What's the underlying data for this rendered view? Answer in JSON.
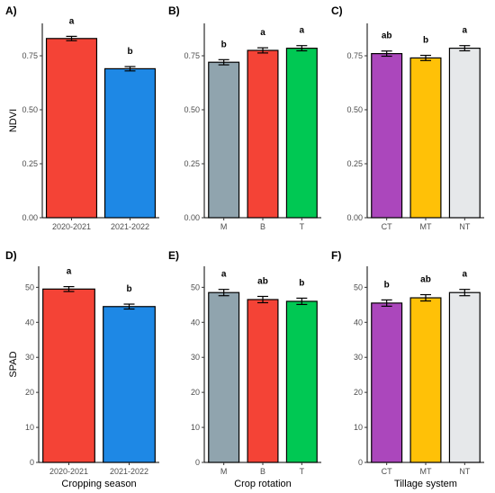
{
  "chart_data": [
    {
      "panel": "A)",
      "type": "bar",
      "ylabel": "NDVI",
      "xlabel": "",
      "ylim": [
        0,
        0.9
      ],
      "yticks": [
        "0.00",
        "0.25",
        "0.50",
        "0.75"
      ],
      "categories": [
        "2020-2021",
        "2021-2022"
      ],
      "values": [
        0.83,
        0.69
      ],
      "errors": [
        0.01,
        0.01
      ],
      "letters": [
        "a",
        "b"
      ],
      "colors": [
        "#f44336",
        "#1e88e5"
      ]
    },
    {
      "panel": "B)",
      "type": "bar",
      "ylabel": "",
      "xlabel": "",
      "ylim": [
        0,
        0.9
      ],
      "yticks": [
        "0.00",
        "0.25",
        "0.50",
        "0.75"
      ],
      "categories": [
        "M",
        "B",
        "T"
      ],
      "values": [
        0.72,
        0.775,
        0.785
      ],
      "errors": [
        0.012,
        0.012,
        0.012
      ],
      "letters": [
        "b",
        "a",
        "a"
      ],
      "colors": [
        "#90a4ae",
        "#f44336",
        "#00c853"
      ]
    },
    {
      "panel": "C)",
      "type": "bar",
      "ylabel": "",
      "xlabel": "",
      "ylim": [
        0,
        0.9
      ],
      "yticks": [
        "0.00",
        "0.25",
        "0.50",
        "0.75"
      ],
      "categories": [
        "CT",
        "MT",
        "NT"
      ],
      "values": [
        0.76,
        0.74,
        0.785
      ],
      "errors": [
        0.012,
        0.012,
        0.012
      ],
      "letters": [
        "ab",
        "b",
        "a"
      ],
      "colors": [
        "#ab47bc",
        "#ffc107",
        "#e6e8ea"
      ]
    },
    {
      "panel": "D)",
      "type": "bar",
      "ylabel": "SPAD",
      "xlabel": "Cropping season",
      "ylim": [
        0,
        56
      ],
      "yticks": [
        "0",
        "10",
        "20",
        "30",
        "40",
        "50"
      ],
      "categories": [
        "2020-2021",
        "2021-2022"
      ],
      "values": [
        49.5,
        44.5
      ],
      "errors": [
        0.7,
        0.7
      ],
      "letters": [
        "a",
        "b"
      ],
      "colors": [
        "#f44336",
        "#1e88e5"
      ]
    },
    {
      "panel": "E)",
      "type": "bar",
      "ylabel": "",
      "xlabel": "Crop rotation",
      "ylim": [
        0,
        56
      ],
      "yticks": [
        "0",
        "10",
        "20",
        "30",
        "40",
        "50"
      ],
      "categories": [
        "M",
        "B",
        "T"
      ],
      "values": [
        48.5,
        46.5,
        46.0
      ],
      "errors": [
        0.9,
        0.9,
        0.9
      ],
      "letters": [
        "a",
        "ab",
        "b"
      ],
      "colors": [
        "#90a4ae",
        "#f44336",
        "#00c853"
      ]
    },
    {
      "panel": "F)",
      "type": "bar",
      "ylabel": "",
      "xlabel": "Tillage system",
      "ylim": [
        0,
        56
      ],
      "yticks": [
        "0",
        "10",
        "20",
        "30",
        "40",
        "50"
      ],
      "categories": [
        "CT",
        "MT",
        "NT"
      ],
      "values": [
        45.5,
        47.0,
        48.5
      ],
      "errors": [
        0.9,
        0.9,
        0.9
      ],
      "letters": [
        "b",
        "ab",
        "a"
      ],
      "colors": [
        "#ab47bc",
        "#ffc107",
        "#e6e8ea"
      ]
    }
  ]
}
